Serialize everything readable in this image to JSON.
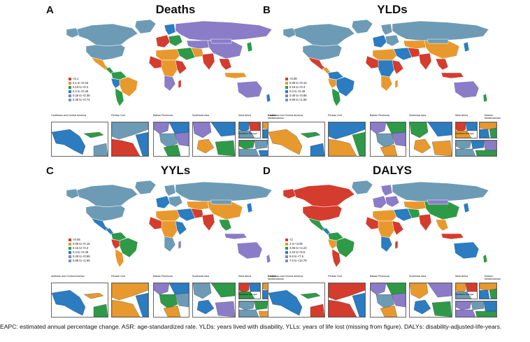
{
  "palette": {
    "red": "#d43c2e",
    "orange": "#e8992e",
    "green": "#2e9a47",
    "blue": "#2b7cc1",
    "purple": "#8b7cc8",
    "slate": "#6d9bb5"
  },
  "inset_titles": {
    "caribbean": "Caribbean and Central America",
    "caribbean_c": "aribbean and Central America",
    "gulf": "Persian Gulf",
    "balkan": "Balkan Peninsula",
    "seasia": "Southeast Asia",
    "westafrica": "West Africa",
    "eastmed": "Eastern Mediterranean",
    "neurope": "Northern Europe"
  },
  "panels": [
    {
      "letter": "A",
      "title": "Deaths",
      "legend": [
        "<0.1",
        "0.1 to <0.15",
        "0.15 to <0.2",
        "0.2 to <0.26",
        "0.26 to <0.36",
        "0.36 to <0.74"
      ]
    },
    {
      "letter": "B",
      "title": "YLDs",
      "legend": [
        "<0.08",
        "0.08 to <0.15",
        "0.15 to <0.3",
        "0.3 to <0.49",
        "0.49 to <0.88",
        "0.88 to <1.66"
      ]
    },
    {
      "letter": "C",
      "title": "YYLs",
      "legend": [
        "<0.08",
        "0.08 to <0.15",
        "0.15 to <0.3",
        "0.3 to <0.49",
        "0.49 to <0.88",
        "0.88 to <1.66"
      ]
    },
    {
      "letter": "D",
      "title": "DALYS",
      "legend": [
        "<2",
        "2 to <3.06",
        "3.06 to <4.23",
        "4.23 to <5.5",
        "5.5 to <7.6",
        "7.6 to <14.79"
      ]
    }
  ],
  "caption": "EAPC: estimated annual percentage change.  ASR: age-standardized rate. YLDs: years lived with disability, YLLs: years of life lost (missing from figure). DALYs: disability-adjusted-life-years."
}
